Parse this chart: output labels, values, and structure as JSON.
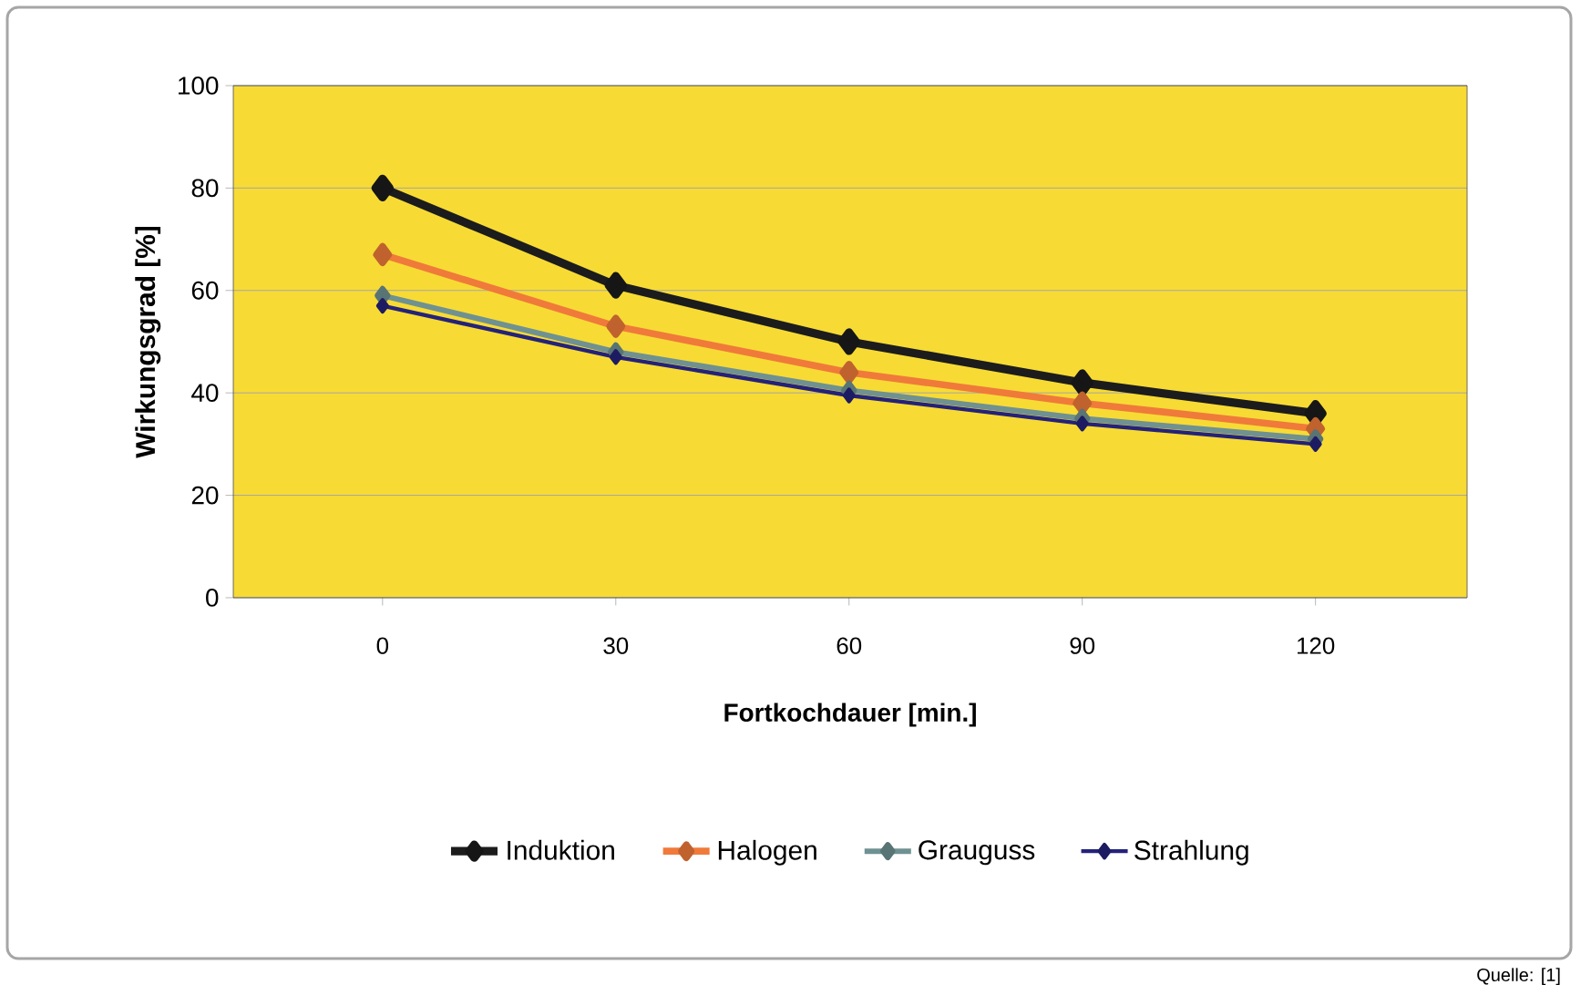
{
  "chart_data": {
    "type": "line",
    "xlabel": "Fortkochdauer [min.]",
    "ylabel": "Wirkungsgrad [%]",
    "categories": [
      "0",
      "30",
      "60",
      "90",
      "120"
    ],
    "series": [
      {
        "name": "Induktion",
        "color": "#1c1c1c",
        "values": [
          80,
          61,
          50,
          42,
          36
        ]
      },
      {
        "name": "Halogen",
        "color": "#f07a3a",
        "values": [
          67,
          53,
          44,
          38,
          33
        ]
      },
      {
        "name": "Grauguss",
        "color": "#6f9191",
        "values": [
          59,
          48,
          40.5,
          35,
          31
        ]
      },
      {
        "name": "Strahlung",
        "color": "#24227a",
        "values": [
          57,
          47,
          39.5,
          34,
          30
        ]
      }
    ],
    "ylim": [
      0,
      100
    ],
    "yticks": [
      0,
      20,
      40,
      60,
      80,
      100
    ],
    "grid": "y",
    "legend": "bottom",
    "marker": "diamond",
    "line_style": "solid",
    "annotations": [
      "Quelle: [1]"
    ]
  }
}
